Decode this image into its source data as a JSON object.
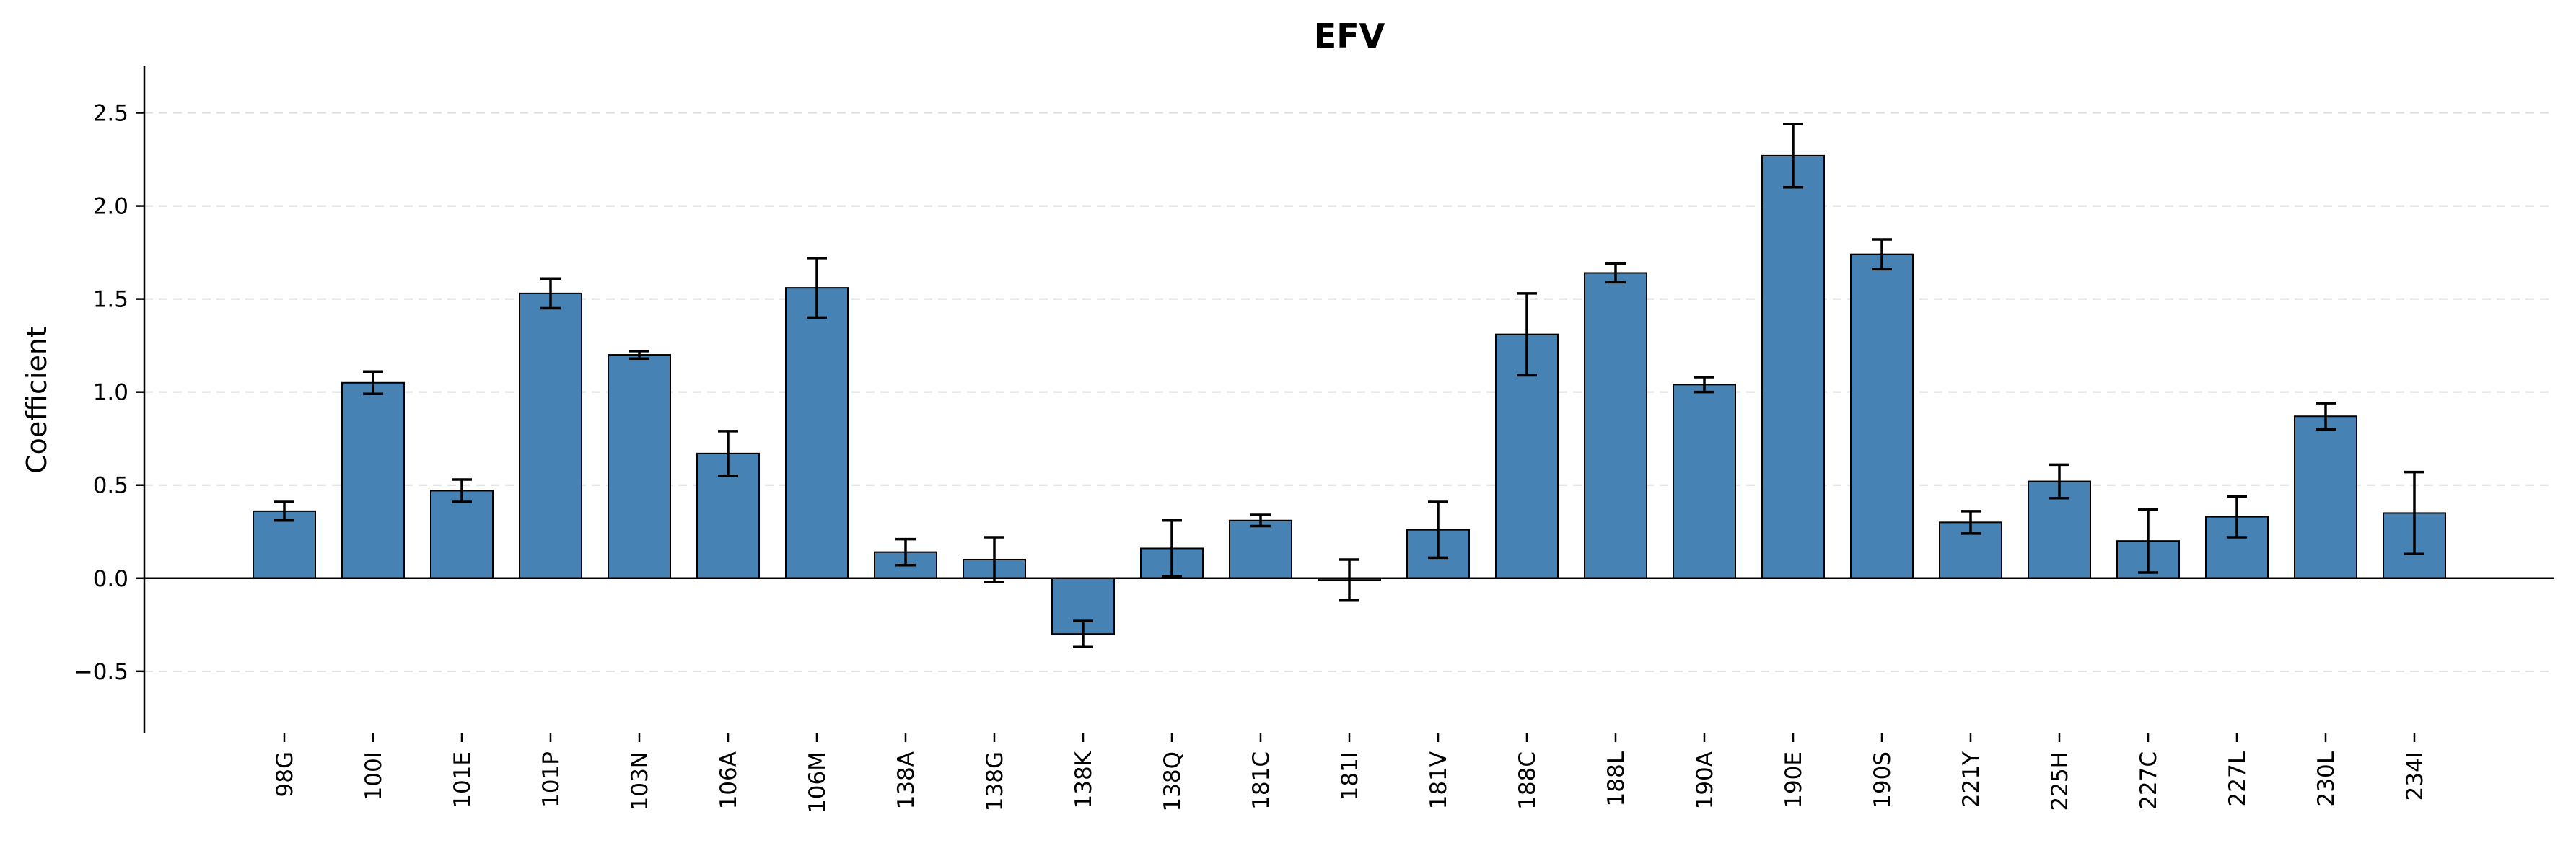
{
  "chart_data": {
    "type": "bar",
    "title": "EFV",
    "xlabel": "",
    "ylabel": "Coefficient",
    "ylim": [
      -0.83,
      2.75
    ],
    "yticks": [
      -0.5,
      0.0,
      0.5,
      1.0,
      1.5,
      2.0,
      2.5
    ],
    "ytick_labels": [
      "−0.5",
      "0.0",
      "0.5",
      "1.0",
      "1.5",
      "2.0",
      "2.5"
    ],
    "grid": "y-dashed",
    "bar_color": "#4682b4",
    "categories": [
      "98G",
      "100I",
      "101E",
      "101P",
      "103N",
      "106A",
      "106M",
      "138A",
      "138G",
      "138K",
      "138Q",
      "181C",
      "181I",
      "181V",
      "188C",
      "188L",
      "190A",
      "190E",
      "190S",
      "221Y",
      "225H",
      "227C",
      "227L",
      "230L",
      "234I"
    ],
    "values": [
      0.36,
      1.05,
      0.47,
      1.53,
      1.2,
      0.67,
      1.56,
      0.14,
      0.1,
      -0.3,
      0.16,
      0.31,
      -0.01,
      0.26,
      1.31,
      1.64,
      1.04,
      2.27,
      1.74,
      0.3,
      0.52,
      0.2,
      0.33,
      0.87,
      0.35
    ],
    "errors": [
      0.05,
      0.06,
      0.06,
      0.08,
      0.02,
      0.12,
      0.16,
      0.07,
      0.12,
      0.07,
      0.15,
      0.03,
      0.11,
      0.15,
      0.22,
      0.05,
      0.04,
      0.17,
      0.08,
      0.06,
      0.09,
      0.17,
      0.11,
      0.07,
      0.22
    ]
  }
}
